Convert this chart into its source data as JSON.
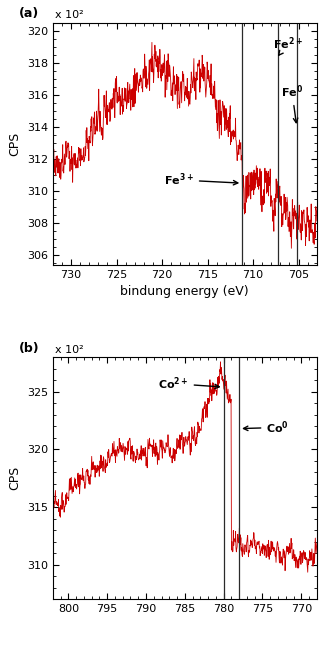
{
  "panel_a": {
    "label": "(a)",
    "xmin": 703,
    "xmax": 732,
    "ymin": 30540,
    "ymax": 32050,
    "ytick_labels": [
      "306",
      "308",
      "310",
      "312",
      "314",
      "316",
      "318",
      "320"
    ],
    "ytick_values": [
      30600,
      30800,
      31000,
      31200,
      31400,
      31600,
      31800,
      32000
    ],
    "xtick_labels": [
      "730",
      "725",
      "720",
      "715",
      "710",
      "705"
    ],
    "xtick_values": [
      730,
      725,
      720,
      715,
      710,
      705
    ],
    "xlabel": "bindung energy (eV)",
    "ylabel": "CPS",
    "scale_label": "x 10²",
    "vline1": 711.2,
    "vline2": 707.3,
    "vline3": 705.2
  },
  "panel_b": {
    "label": "(b)",
    "xmin": 768,
    "xmax": 802,
    "ymin": 30700,
    "ymax": 32800,
    "ytick_labels": [
      "310",
      "315",
      "320",
      "325"
    ],
    "ytick_values": [
      31000,
      31500,
      32000,
      32500
    ],
    "xtick_labels": [
      "800",
      "795",
      "790",
      "785",
      "780",
      "775",
      "770"
    ],
    "xtick_values": [
      800,
      795,
      790,
      785,
      780,
      775,
      770
    ],
    "xlabel": "",
    "ylabel": "CPS",
    "scale_label": "x 10²",
    "vline1": 780.0,
    "vline2": 778.0
  },
  "line_color": "#cc0000",
  "vline_color": "#2a2a2a",
  "bg_color": "#ffffff",
  "annotation_fontsize": 8,
  "axis_label_fontsize": 9,
  "tick_fontsize": 8
}
